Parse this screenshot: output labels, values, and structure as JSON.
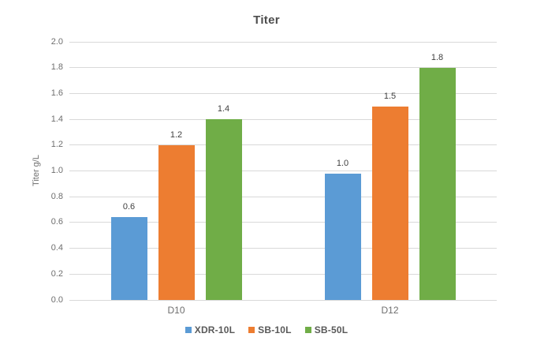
{
  "chart_data": {
    "type": "bar",
    "title": "Titer",
    "xlabel": "",
    "ylabel": "Titer g/L",
    "categories": [
      "D10",
      "D12"
    ],
    "series": [
      {
        "name": "XDR-10L",
        "color": "#5B9BD5",
        "values": [
          0.64,
          0.98
        ],
        "labels": [
          "0.6",
          "1.0"
        ]
      },
      {
        "name": "SB-10L",
        "color": "#ED7D31",
        "values": [
          1.2,
          1.5
        ],
        "labels": [
          "1.2",
          "1.5"
        ]
      },
      {
        "name": "SB-50L",
        "color": "#70AD47",
        "values": [
          1.4,
          1.8
        ],
        "labels": [
          "1.4",
          "1.8"
        ]
      }
    ],
    "ylim": [
      0.0,
      2.0
    ],
    "ytick_step": 0.2,
    "ytick_labels": [
      "0.0",
      "0.2",
      "0.4",
      "0.6",
      "0.8",
      "1.0",
      "1.2",
      "1.4",
      "1.6",
      "1.8",
      "2.0"
    ],
    "grid": true,
    "legend_position": "bottom"
  },
  "colors": {
    "background": "#ffffff",
    "gridline": "#d9d9d9",
    "title_text": "#4d4d4d",
    "axis_text": "#6e6e6e",
    "data_label_text": "#404040",
    "legend_text": "#595959"
  }
}
